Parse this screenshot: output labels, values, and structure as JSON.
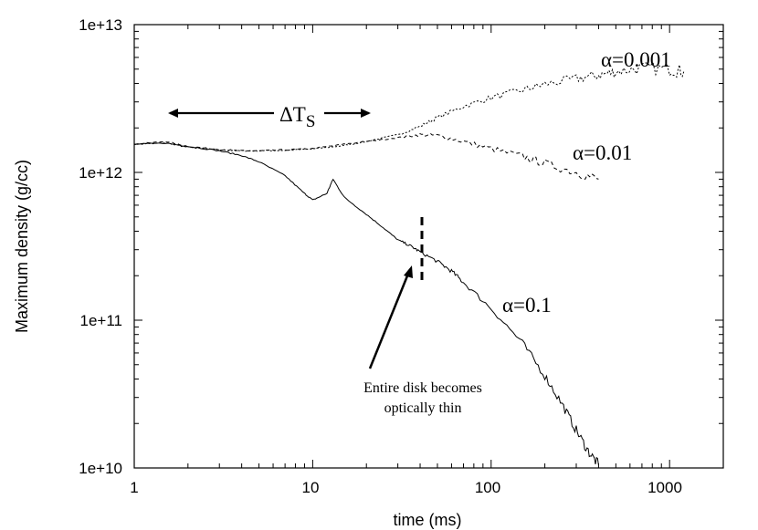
{
  "chart_data": {
    "type": "line",
    "title": "",
    "xlabel": "time (ms)",
    "ylabel": "Maximum density (g/cc)",
    "xscale": "log",
    "yscale": "log",
    "xlim": [
      1,
      2000
    ],
    "ylim": [
      10000000000.0,
      10000000000000.0
    ],
    "x_ticks": [
      {
        "value": 1,
        "label": "1"
      },
      {
        "value": 10,
        "label": "10"
      },
      {
        "value": 100,
        "label": "100"
      },
      {
        "value": 1000,
        "label": "1000"
      }
    ],
    "y_ticks": [
      {
        "value": 10000000000.0,
        "label": "1e+10"
      },
      {
        "value": 100000000000.0,
        "label": "1e+11"
      },
      {
        "value": 1000000000000.0,
        "label": "1e+12"
      },
      {
        "value": 10000000000000.0,
        "label": "1e+13"
      }
    ],
    "series": [
      {
        "name": "α=0.001",
        "style": "dotted",
        "x": [
          1,
          1.5,
          2,
          3,
          4,
          5,
          7,
          10,
          15,
          20,
          30,
          40,
          50,
          70,
          100,
          150,
          200,
          300,
          400,
          500,
          700,
          1000,
          1200
        ],
        "y": [
          1550000000000.0,
          1580000000000.0,
          1480000000000.0,
          1420000000000.0,
          1400000000000.0,
          1400000000000.0,
          1410000000000.0,
          1440000000000.0,
          1520000000000.0,
          1620000000000.0,
          1800000000000.0,
          2050000000000.0,
          2350000000000.0,
          2800000000000.0,
          3200000000000.0,
          3600000000000.0,
          3950000000000.0,
          4300000000000.0,
          4550000000000.0,
          4800000000000.0,
          5100000000000.0,
          5000000000000.0,
          4800000000000.0
        ]
      },
      {
        "name": "α=0.01",
        "style": "dashed",
        "x": [
          1,
          1.5,
          2,
          3,
          4,
          5,
          7,
          10,
          15,
          20,
          30,
          40,
          50,
          70,
          100,
          150,
          200,
          300,
          400
        ],
        "y": [
          1550000000000.0,
          1620000000000.0,
          1500000000000.0,
          1430000000000.0,
          1400000000000.0,
          1400000000000.0,
          1420000000000.0,
          1450000000000.0,
          1550000000000.0,
          1620000000000.0,
          1720000000000.0,
          1800000000000.0,
          1780000000000.0,
          1620000000000.0,
          1450000000000.0,
          1280000000000.0,
          1150000000000.0,
          1000000000000.0,
          900000000000.0
        ]
      },
      {
        "name": "α=0.1",
        "style": "solid",
        "x": [
          1,
          1.5,
          2,
          3,
          4,
          5,
          7,
          9,
          10,
          12,
          13,
          15,
          20,
          25,
          30,
          35,
          40,
          50,
          60,
          70,
          100,
          150,
          200,
          250,
          300,
          350,
          400
        ],
        "y": [
          1550000000000.0,
          1580000000000.0,
          1500000000000.0,
          1400000000000.0,
          1300000000000.0,
          1180000000000.0,
          950000000000.0,
          720000000000.0,
          650000000000.0,
          720000000000.0,
          900000000000.0,
          680000000000.0,
          520000000000.0,
          420000000000.0,
          350000000000.0,
          320000000000.0,
          290000000000.0,
          250000000000.0,
          215000000000.0,
          180000000000.0,
          120000000000.0,
          70000000000.0,
          42000000000.0,
          27000000000.0,
          18000000000.0,
          13000000000.0,
          10500000000.0
        ]
      }
    ],
    "series_labels": [
      "α=0.001",
      "α=0.01",
      "α=0.1"
    ],
    "annotations": {
      "delta_t": "ΔT",
      "delta_t_subscript": "S",
      "delta_t_range_ms": [
        1.5,
        22
      ],
      "thin_marker_time_ms": 40,
      "thin_note_line1": "Entire disk becomes",
      "thin_note_line2": "optically thin"
    },
    "grid": false,
    "legend": "none"
  }
}
